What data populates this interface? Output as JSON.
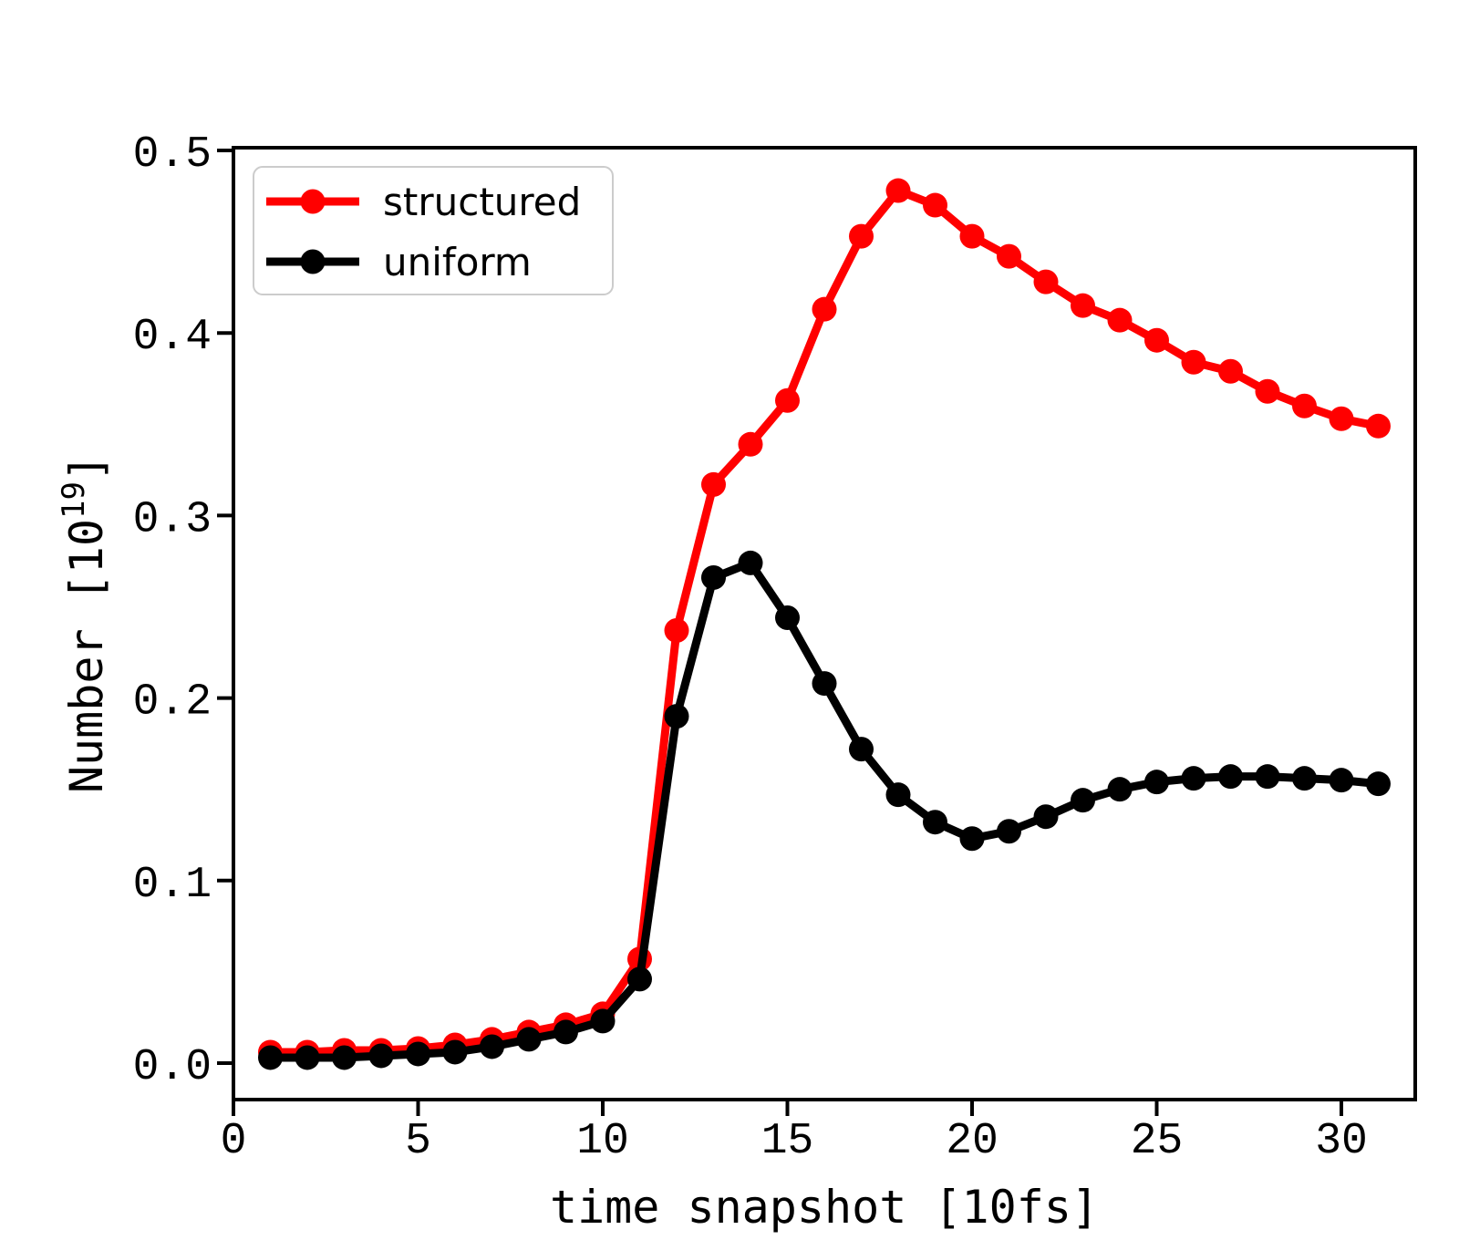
{
  "figure": {
    "background": "#ffffff"
  },
  "chart_data": {
    "type": "line",
    "title": "",
    "xlabel": "time snapshot [10fs]",
    "ylabel": "Number [10^19]",
    "ylabel_parts": {
      "pre": "Number [10",
      "sup": "19",
      "post": "]"
    },
    "xlim": [
      0,
      32
    ],
    "ylim": [
      -0.02,
      0.5015
    ],
    "xticks": [
      0,
      5,
      10,
      15,
      20,
      25,
      30
    ],
    "yticks": [
      0.0,
      0.1,
      0.2,
      0.3,
      0.4,
      0.5
    ],
    "grid": false,
    "legend": {
      "position": "upper-left",
      "entries": [
        "structured",
        "uniform"
      ]
    },
    "x": [
      1,
      2,
      3,
      4,
      5,
      6,
      7,
      8,
      9,
      10,
      11,
      12,
      13,
      14,
      15,
      16,
      17,
      18,
      19,
      20,
      21,
      22,
      23,
      24,
      25,
      26,
      27,
      28,
      29,
      30,
      31
    ],
    "series": [
      {
        "name": "structured",
        "color": "#ff0000",
        "marker": "circle",
        "values": [
          0.006,
          0.006,
          0.007,
          0.007,
          0.008,
          0.01,
          0.013,
          0.017,
          0.021,
          0.027,
          0.057,
          0.237,
          0.317,
          0.339,
          0.363,
          0.413,
          0.453,
          0.478,
          0.47,
          0.453,
          0.442,
          0.428,
          0.415,
          0.407,
          0.396,
          0.384,
          0.379,
          0.368,
          0.36,
          0.353,
          0.349
        ]
      },
      {
        "name": "uniform",
        "color": "#000000",
        "marker": "circle",
        "values": [
          0.003,
          0.003,
          0.003,
          0.004,
          0.005,
          0.006,
          0.009,
          0.013,
          0.017,
          0.023,
          0.046,
          0.19,
          0.266,
          0.274,
          0.244,
          0.208,
          0.172,
          0.147,
          0.132,
          0.123,
          0.127,
          0.135,
          0.144,
          0.15,
          0.154,
          0.156,
          0.157,
          0.157,
          0.156,
          0.155,
          0.153
        ]
      }
    ]
  }
}
